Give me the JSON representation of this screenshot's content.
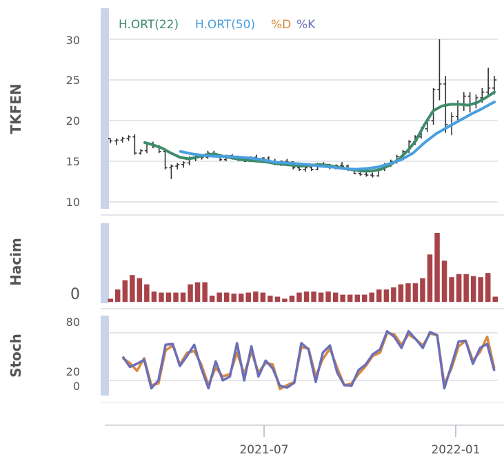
{
  "chart_data": {
    "type": "line",
    "x_ticks": [
      "2021-07",
      "2022-01"
    ],
    "legend": [
      {
        "label": "H.ORT(22)",
        "color": "#3d8c6a"
      },
      {
        "label": "H.ORT(50)",
        "color": "#4a9fde"
      },
      {
        "label": "%D",
        "color": "#d98a3c"
      },
      {
        "label": "%K",
        "color": "#6a6fb8"
      }
    ],
    "panels": {
      "price": {
        "ylabel": "TKFEN",
        "yticks": [
          "30",
          "25",
          "20",
          "15",
          "10"
        ],
        "ylim": [
          9,
          33
        ],
        "ohlc": [
          [
            17.8,
            17.8,
            17.2,
            17.5
          ],
          [
            17.5,
            17.8,
            17.0,
            17.6
          ],
          [
            17.6,
            18.0,
            17.3,
            17.8
          ],
          [
            17.8,
            18.2,
            17.5,
            18.0
          ],
          [
            18.0,
            18.3,
            15.8,
            16.0
          ],
          [
            16.0,
            16.5,
            15.8,
            16.3
          ],
          [
            16.3,
            17.3,
            16.0,
            17.2
          ],
          [
            17.2,
            17.4,
            16.6,
            16.8
          ],
          [
            16.8,
            17.0,
            16.0,
            16.2
          ],
          [
            16.2,
            16.5,
            14.0,
            14.2
          ],
          [
            14.2,
            14.6,
            12.8,
            14.4
          ],
          [
            14.4,
            14.8,
            14.0,
            14.6
          ],
          [
            14.6,
            15.0,
            14.2,
            14.8
          ],
          [
            14.8,
            15.6,
            14.5,
            15.3
          ],
          [
            15.3,
            15.8,
            15.0,
            15.6
          ],
          [
            15.6,
            15.9,
            15.2,
            15.5
          ],
          [
            15.5,
            16.3,
            15.3,
            16.0
          ],
          [
            16.0,
            16.3,
            15.5,
            15.6
          ],
          [
            15.6,
            15.9,
            15.0,
            15.2
          ],
          [
            15.2,
            15.8,
            15.0,
            15.7
          ],
          [
            15.7,
            15.9,
            15.2,
            15.3
          ],
          [
            15.3,
            15.7,
            15.0,
            15.4
          ],
          [
            15.4,
            15.6,
            14.9,
            15.0
          ],
          [
            15.0,
            15.6,
            14.9,
            15.5
          ],
          [
            15.5,
            15.8,
            15.1,
            15.2
          ],
          [
            15.2,
            15.5,
            14.9,
            15.4
          ],
          [
            15.4,
            15.6,
            14.8,
            15.0
          ],
          [
            15.0,
            15.3,
            14.5,
            14.7
          ],
          [
            14.7,
            15.1,
            14.4,
            15.0
          ],
          [
            15.0,
            15.3,
            14.6,
            14.9
          ],
          [
            14.9,
            15.0,
            14.0,
            14.2
          ],
          [
            14.2,
            14.5,
            13.8,
            14.0
          ],
          [
            14.0,
            14.3,
            13.7,
            14.2
          ],
          [
            14.2,
            14.4,
            13.8,
            14.0
          ],
          [
            14.0,
            14.8,
            13.9,
            14.6
          ],
          [
            14.6,
            14.9,
            14.2,
            14.4
          ],
          [
            14.4,
            14.7,
            14.0,
            14.2
          ],
          [
            14.2,
            14.6,
            14.0,
            14.5
          ],
          [
            14.5,
            14.9,
            14.2,
            14.4
          ],
          [
            14.4,
            14.6,
            13.8,
            14.0
          ],
          [
            14.0,
            14.2,
            13.4,
            13.5
          ],
          [
            13.5,
            13.8,
            13.2,
            13.4
          ],
          [
            13.4,
            13.7,
            13.1,
            13.3
          ],
          [
            13.3,
            13.6,
            13.0,
            13.2
          ],
          [
            13.2,
            14.2,
            13.1,
            14.0
          ],
          [
            14.0,
            14.8,
            13.8,
            14.6
          ],
          [
            14.6,
            15.2,
            14.3,
            15.0
          ],
          [
            15.0,
            15.8,
            14.7,
            15.6
          ],
          [
            15.6,
            16.4,
            15.3,
            16.2
          ],
          [
            16.2,
            17.6,
            16.0,
            17.4
          ],
          [
            17.4,
            18.2,
            17.0,
            18.0
          ],
          [
            18.0,
            19.2,
            17.8,
            19.0
          ],
          [
            19.0,
            20.2,
            18.6,
            20.0
          ],
          [
            20.0,
            24.0,
            19.5,
            23.8
          ],
          [
            23.8,
            30.0,
            22.5,
            24.5
          ],
          [
            24.5,
            25.5,
            18.5,
            19.5
          ],
          [
            19.5,
            21.0,
            18.2,
            20.5
          ],
          [
            20.5,
            22.5,
            20.0,
            22.0
          ],
          [
            22.0,
            23.5,
            21.2,
            23.0
          ],
          [
            23.0,
            23.5,
            21.0,
            22.0
          ],
          [
            22.0,
            23.2,
            21.5,
            22.8
          ],
          [
            22.8,
            24.0,
            22.2,
            23.5
          ],
          [
            23.5,
            26.5,
            23.0,
            24.0
          ],
          [
            24.0,
            25.5,
            23.2,
            25.0
          ]
        ],
        "ma22": [
          17.3,
          17.0,
          16.6,
          16.0,
          15.5,
          15.3,
          15.5,
          15.8,
          15.9,
          15.6,
          15.4,
          15.2,
          15.1,
          15.0,
          14.9,
          14.7,
          14.6,
          14.5,
          14.4,
          14.5,
          14.6,
          14.5,
          14.3,
          14.1,
          13.9,
          13.8,
          13.8,
          14.0,
          14.5,
          15.2,
          16.2,
          17.5,
          19.5,
          21.2,
          21.8,
          22.0,
          22.0,
          21.9,
          22.2,
          22.8,
          23.5
        ],
        "ma50": [
          16.2,
          15.9,
          15.7,
          15.6,
          15.6,
          15.5,
          15.4,
          15.2,
          14.9,
          14.8,
          14.7,
          14.6,
          14.4,
          14.3,
          14.1,
          14.0,
          14.1,
          14.3,
          14.7,
          15.2,
          16.0,
          17.3,
          18.4,
          19.2,
          20.0,
          20.8,
          21.5,
          22.3
        ]
      },
      "volume": {
        "ylabel": "Hacim",
        "yticks": [
          "0"
        ],
        "values": [
          3,
          12,
          21,
          26,
          23,
          17,
          10,
          9,
          9,
          9,
          9,
          17,
          19,
          19,
          6,
          9,
          9,
          8,
          8,
          9,
          10,
          9,
          6,
          5,
          3,
          6,
          9,
          10,
          10,
          9,
          10,
          9,
          7,
          7,
          7,
          7,
          9,
          12,
          12,
          14,
          17,
          18,
          18,
          23,
          46,
          67,
          40,
          24,
          27,
          27,
          25,
          24,
          28,
          5
        ]
      },
      "stoch": {
        "ylabel": "Stoch",
        "yticks": [
          "80",
          "20",
          "0"
        ],
        "ylim": [
          -10,
          95
        ],
        "pct_k": [
          50,
          37,
          41,
          46,
          10,
          20,
          65,
          66,
          38,
          51,
          65,
          35,
          10,
          44,
          20,
          25,
          67,
          20,
          63,
          25,
          45,
          35,
          13,
          11,
          17,
          67,
          59,
          18,
          55,
          64,
          30,
          14,
          13,
          33,
          40,
          53,
          59,
          82,
          75,
          61,
          82,
          72,
          61,
          81,
          77,
          10,
          39,
          69,
          70,
          41,
          61,
          66,
          32
        ],
        "pct_d": [
          48,
          42,
          32,
          48,
          14,
          16,
          58,
          64,
          40,
          55,
          57,
          40,
          14,
          36,
          25,
          28,
          55,
          28,
          56,
          30,
          42,
          40,
          9,
          14,
          18,
          62,
          60,
          25,
          47,
          60,
          36,
          14,
          16,
          28,
          38,
          51,
          55,
          80,
          78,
          65,
          78,
          72,
          64,
          79,
          77,
          15,
          35,
          63,
          70,
          45,
          56,
          75,
          35
        ]
      }
    }
  }
}
